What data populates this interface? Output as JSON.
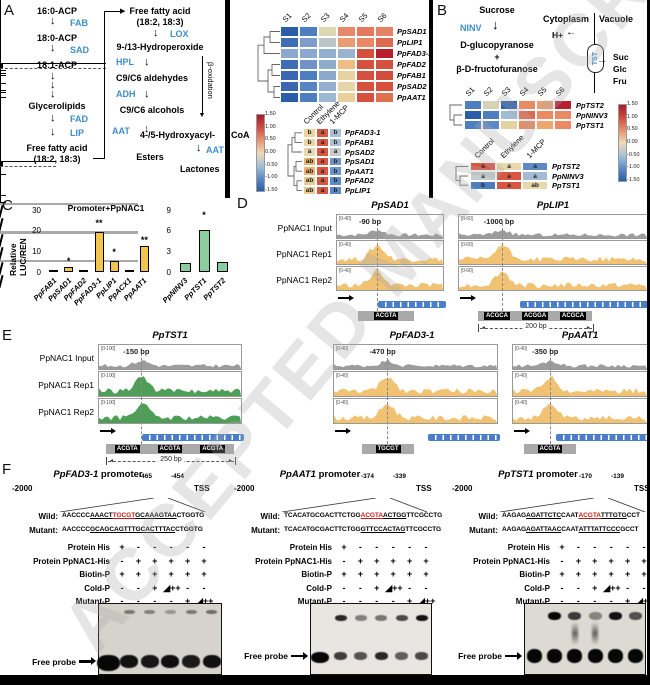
{
  "watermark": "ACCEPTED MANUSCRIPT",
  "panel_labels": {
    "a": "A",
    "b": "B",
    "c": "C",
    "d": "D",
    "e": "E",
    "f": "F"
  },
  "pathway_a": {
    "n1": "16:0-ACP",
    "e1": "FAB",
    "n2": "18:0-ACP",
    "e2": "SAD",
    "n3": "18:1-ACP",
    "n4": "Glycerolipids",
    "e3": "FAD",
    "e4": "LIP",
    "n5a": "Free fatty acid",
    "n5b": "(18:2, 18:3)",
    "r1a": "Free fatty acid",
    "r1b": "(18:2, 18:3)",
    "re1": "LOX",
    "r2": "9-/13-Hydroperoxide",
    "re2": "HPL",
    "r3": "C9/C6 aldehydes",
    "re3": "ADH",
    "r4": "C9/C6 alcohols",
    "re4": "AAT",
    "r5": "Esters",
    "beta": "β-oxidation",
    "r6a": "4-/5-Hydroxyacyl-",
    "r6b": "CoA",
    "re5": "AAT",
    "r7": "Lactones"
  },
  "pathway_b": {
    "s": "Sucrose",
    "e": "NINV",
    "p1": "D-glucopyranose",
    "plus": "+",
    "p2": "β-D-fructofuranose",
    "cyt": "Cytoplasm",
    "vac": "Vacuole",
    "h": "H+",
    "t": "TST",
    "suc": "Suc",
    "glc": "Glc",
    "fru": "Fru"
  },
  "colorbar": {
    "ticks": [
      "1.50",
      "1.00",
      "0.50",
      "0.00",
      "-0.50",
      "-1.00",
      "-1.50"
    ]
  },
  "heatmap_a1": {
    "columns": [
      "S1",
      "S2",
      "S3",
      "S4",
      "S5",
      "S6"
    ],
    "rows": [
      {
        "label": "PpSAD1",
        "cells": [
          {
            "c": "#2a5caa"
          },
          {
            "c": "#4d7fc0"
          },
          {
            "c": "#ded8b2"
          },
          {
            "c": "#e8876a"
          },
          {
            "c": "#e37a5e"
          },
          {
            "c": "#e68266"
          }
        ]
      },
      {
        "label": "PpLIP1",
        "cells": [
          {
            "c": "#3f6db5"
          },
          {
            "c": "#7e9dca"
          },
          {
            "c": "#bcc5cb"
          },
          {
            "c": "#eb9b70"
          },
          {
            "c": "#ea8765"
          },
          {
            "c": "#dd6a50"
          }
        ]
      },
      {
        "label": "PpFAD3-1",
        "cells": [
          {
            "c": "#8ca9cd"
          },
          {
            "c": "#8ca9cd"
          },
          {
            "c": "#94afce"
          },
          {
            "c": "#99b3d0"
          },
          {
            "c": "#d6513d"
          },
          {
            "c": "#b61f2e"
          }
        ]
      },
      {
        "label": "PpFAD2",
        "cells": [
          {
            "c": "#3f6db5"
          },
          {
            "c": "#7093c7"
          },
          {
            "c": "#90accd"
          },
          {
            "c": "#edbd85"
          },
          {
            "c": "#d6513d"
          },
          {
            "c": "#d6513d"
          }
        ]
      },
      {
        "label": "PpFAB1",
        "cells": [
          {
            "c": "#3a67b0"
          },
          {
            "c": "#4d7fc0"
          },
          {
            "c": "#8ca9cd"
          },
          {
            "c": "#e8d3a0"
          },
          {
            "c": "#d6513d"
          },
          {
            "c": "#d24c3c"
          }
        ]
      },
      {
        "label": "PpSAD2",
        "cells": [
          {
            "c": "#3a67b0"
          },
          {
            "c": "#5784c3"
          },
          {
            "c": "#94afce"
          },
          {
            "c": "#e6d5a6"
          },
          {
            "c": "#d6513d"
          },
          {
            "c": "#d6513d"
          }
        ]
      },
      {
        "label": "PpAAT1",
        "cells": [
          {
            "c": "#2a5caa"
          },
          {
            "c": "#4d7fc0"
          },
          {
            "c": "#9fb8d2"
          },
          {
            "c": "#e8cf9c"
          },
          {
            "c": "#d6513d"
          },
          {
            "c": "#e0714f"
          }
        ]
      }
    ]
  },
  "heatmap_a2": {
    "columns": [
      "Control",
      "Ethylene",
      "1-MCP"
    ],
    "rows": [
      {
        "label": "PpFAD3-1",
        "cells": [
          {
            "t": "b",
            "c": "#e9d6a0"
          },
          {
            "t": "a",
            "c": "#d8563f"
          },
          {
            "t": "b",
            "c": "#a9c0d6"
          }
        ]
      },
      {
        "label": "PpFAB1",
        "cells": [
          {
            "t": "b",
            "c": "#e9d6a0"
          },
          {
            "t": "a",
            "c": "#d8563f"
          },
          {
            "t": "b",
            "c": "#a9c0d6"
          }
        ]
      },
      {
        "label": "PpSAD2",
        "cells": [
          {
            "t": "a",
            "c": "#e6d8b0"
          },
          {
            "t": "a",
            "c": "#d8563f"
          },
          {
            "t": "a",
            "c": "#c6cdd1"
          }
        ]
      },
      {
        "label": "PpSAD1",
        "cells": [
          {
            "t": "ab",
            "c": "#eab36f"
          },
          {
            "t": "a",
            "c": "#d8563f"
          },
          {
            "t": "b",
            "c": "#6d94c8"
          }
        ]
      },
      {
        "label": "PpAAT1",
        "cells": [
          {
            "t": "ab",
            "c": "#eab36f"
          },
          {
            "t": "a",
            "c": "#d8563f"
          },
          {
            "t": "b",
            "c": "#6d94c8"
          }
        ]
      },
      {
        "label": "PpFAD2",
        "cells": [
          {
            "t": "ab",
            "c": "#e7cc93"
          },
          {
            "t": "a",
            "c": "#d8563f"
          },
          {
            "t": "b",
            "c": "#5d89c4"
          }
        ]
      },
      {
        "label": "PpLIP1",
        "cells": [
          {
            "t": "ab",
            "c": "#e7cc93"
          },
          {
            "t": "a",
            "c": "#d8563f"
          },
          {
            "t": "b",
            "c": "#5d89c4"
          }
        ]
      }
    ]
  },
  "heatmap_b1": {
    "columns": [
      "S1",
      "S2",
      "S3",
      "S4",
      "S5",
      "S6"
    ],
    "rows": [
      {
        "label": "PpTST2",
        "cells": [
          {
            "c": "#4d7fc0"
          },
          {
            "c": "#d8d2b4"
          },
          {
            "c": "#2a5caa"
          },
          {
            "c": "#e98a64"
          },
          {
            "c": "#eda06f"
          },
          {
            "c": "#b61f2e"
          }
        ]
      },
      {
        "label": "PpNINV3",
        "cells": [
          {
            "c": "#2a5caa"
          },
          {
            "c": "#4d7fc0"
          },
          {
            "c": "#a3bcd4"
          },
          {
            "c": "#dd6a50"
          },
          {
            "c": "#e98a64"
          },
          {
            "c": "#e98a64"
          }
        ]
      },
      {
        "label": "PpTST1",
        "cells": [
          {
            "c": "#4d7fc0"
          },
          {
            "c": "#5d89c4"
          },
          {
            "c": "#e3d3a2"
          },
          {
            "c": "#e98a64"
          },
          {
            "c": "#efa671"
          },
          {
            "c": "#e98a64"
          }
        ]
      }
    ]
  },
  "heatmap_b2": {
    "columns": [
      "Control",
      "Ethylene",
      "1-MCP"
    ],
    "rows": [
      {
        "label": "PpTST2",
        "cells": [
          {
            "t": "a",
            "c": "#d8563f"
          },
          {
            "t": "a",
            "c": "#e8d8ad"
          },
          {
            "t": "a",
            "c": "#5d89c4"
          }
        ]
      },
      {
        "label": "PpNINV3",
        "cells": [
          {
            "t": "a",
            "c": "#c6cdd1"
          },
          {
            "t": "a",
            "c": "#d8563f"
          },
          {
            "t": "a",
            "c": "#a3bcd4"
          }
        ]
      },
      {
        "label": "PpTST1",
        "cells": [
          {
            "t": "b",
            "c": "#4d7fc0"
          },
          {
            "t": "a",
            "c": "#d8563f"
          },
          {
            "t": "ab",
            "c": "#e8d8ad"
          }
        ]
      }
    ]
  },
  "chart_data": [
    {
      "type": "bar",
      "title": "Promoter+PpNAC1",
      "ylabel": "Relative LUC/REN",
      "categories": [
        "PpFAB1",
        "PpSAD1",
        "PpFAD2",
        "PpFAD3-1",
        "PpLIP1",
        "PpACX1",
        "PpAAT1"
      ],
      "values": [
        0.8,
        2.5,
        1.0,
        19.5,
        5.5,
        1.2,
        12.5
      ],
      "errors": [
        0.2,
        0.6,
        0.2,
        1.6,
        1.6,
        0.3,
        0.8
      ],
      "sig": [
        "",
        "*",
        "",
        "**",
        "*",
        "",
        "**"
      ],
      "ylim": [
        0,
        30
      ],
      "yticks": [
        0,
        10,
        20,
        30
      ],
      "baseline": 1,
      "bar_color": "#f2c44d",
      "grid": false
    },
    {
      "type": "bar",
      "title": "",
      "ylabel": "",
      "categories": [
        "PpNINV3",
        "PpTST1",
        "PpTST2"
      ],
      "values": [
        1.3,
        6.1,
        1.5
      ],
      "errors": [
        0.5,
        1.5,
        0.4
      ],
      "sig": [
        "",
        "*",
        ""
      ],
      "ylim": [
        0,
        9
      ],
      "yticks": [
        0,
        3,
        6,
        9
      ],
      "baseline": 1,
      "bar_color": "#8bcd9f",
      "grid": false
    }
  ],
  "tracks": {
    "row_labels": [
      "PpNAC1 Input",
      "PpNAC1 Rep1",
      "PpNAC1 Rep2"
    ],
    "panels": [
      {
        "gene": "PpSAD1",
        "range": "[0-40]",
        "peak_label": "-90 bp",
        "motifs": [
          "ACGTA"
        ],
        "scale": null,
        "color": "#f0c272"
      },
      {
        "gene": "PpLIP1",
        "range": "[0-60]",
        "peak_label": "-1000 bp",
        "motifs": [
          "ACGCA",
          "ACGGA",
          "ACGCA"
        ],
        "scale": "200 bp",
        "color": "#f0c272"
      },
      {
        "gene": "PpTST1",
        "range": "[0-100]",
        "peak_label": "-150 bp",
        "motifs": [
          "ACGTA",
          "ACGTA",
          "ACGTA"
        ],
        "scale": "250 bp",
        "color": "#4f9e58"
      },
      {
        "gene": "PpFAD3-1",
        "range": "[0-40]",
        "peak_label": "-470 bp",
        "motifs": [
          "TGCGT"
        ],
        "scale": null,
        "color": "#f0c272"
      },
      {
        "gene": "PpAAT1",
        "range": "[0-40]",
        "peak_label": "-350 bp",
        "motifs": [
          "ACGTA"
        ],
        "scale": null,
        "color": "#f0c272"
      }
    ]
  },
  "emsa": {
    "row_labels": [
      "Protein His",
      "Protein PpNAC1-His",
      "Biotin-P",
      "Cold-P",
      "Mutant-P"
    ],
    "grid": [
      [
        "+",
        "-",
        "-",
        "-",
        "-",
        "-"
      ],
      [
        "-",
        "+",
        "+",
        "+",
        "+",
        "+"
      ],
      [
        "+",
        "+",
        "+",
        "+",
        "+",
        "+"
      ],
      [
        "-",
        "-",
        "+",
        "◢++",
        "-",
        "-"
      ],
      [
        "-",
        "-",
        "-",
        "-",
        "+",
        "◢++"
      ]
    ],
    "free_probe": "Free probe",
    "tss": "TSS",
    "start": "-2000",
    "promoter_word": " promoter",
    "wild_label": "Wild:",
    "mutant_label": "Mutant:",
    "sections": [
      {
        "gene": "PpFAD3-1",
        "marks": [
          "-465",
          "-454"
        ],
        "wild": [
          {
            "t": "AACCCC"
          },
          {
            "t": "AAACT",
            "u": 1
          },
          {
            "t": "TGCGT",
            "u": 1,
            "r": 1
          },
          {
            "t": "GCAAAGTAA",
            "u": 1
          },
          {
            "t": "CTGGTG"
          }
        ],
        "mutant": [
          {
            "t": "AACCCC"
          },
          {
            "t": "GCAGCAGTTTGCACTTTAC",
            "u": 1
          },
          {
            "t": "CTGGTG"
          }
        ],
        "shift": [
          0,
          0.45,
          0.4,
          0.3,
          0.45,
          0.5
        ],
        "free": [
          1,
          0.95,
          0.92,
          0.96,
          0.9,
          0.95
        ],
        "smear": [
          0,
          0,
          0,
          0,
          0,
          0
        ]
      },
      {
        "gene": "PpAAT1",
        "marks": [
          "-374",
          "-339"
        ],
        "wild": [
          {
            "t": "TCACATGCGACTTCTGG"
          },
          {
            "t": "ACGTA",
            "u": 1,
            "r": 1
          },
          {
            "t": "ACTGG",
            "u": 1
          },
          {
            "t": "TTCGCCTG"
          }
        ],
        "mutant": [
          {
            "t": "TCACATGCGACTTCTGG"
          },
          {
            "t": "GTTCCACTAG",
            "u": 1
          },
          {
            "t": "TTCGCCTG"
          }
        ],
        "shift": [
          0,
          0.85,
          0.45,
          0.5,
          0.7,
          0.95
        ],
        "free": [
          1,
          0.75,
          0.65,
          0.85,
          0.6,
          0.7
        ],
        "smear": [
          0,
          0,
          0,
          0,
          0,
          0
        ]
      },
      {
        "gene": "PpTST1",
        "marks": [
          "-170",
          "-139"
        ],
        "wild": [
          {
            "t": "AAGAG"
          },
          {
            "t": "AGATTCTC",
            "u": 1
          },
          {
            "t": "CAAT"
          },
          {
            "t": "ACGTA",
            "u": 1,
            "r": 1
          },
          {
            "t": "TTTGTG",
            "u": 1
          },
          {
            "t": "CCT"
          }
        ],
        "mutant": [
          {
            "t": "AAGAG"
          },
          {
            "t": "AGATTAAC",
            "u": 1
          },
          {
            "t": "CAAT"
          },
          {
            "t": "ATTTATTCCC",
            "u": 1
          },
          {
            "t": "GCCT"
          }
        ],
        "shift": [
          0,
          1,
          0.75,
          0.4,
          0.95,
          0.65
        ],
        "free": [
          1,
          1,
          1,
          1,
          1,
          1
        ],
        "smear": [
          0,
          0,
          1,
          1,
          0,
          0
        ]
      }
    ]
  }
}
